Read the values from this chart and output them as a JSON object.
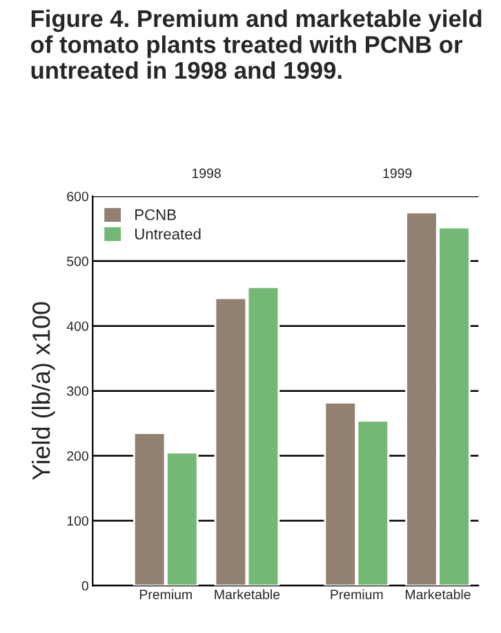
{
  "chart_data": {
    "type": "bar",
    "title": "Figure 4. Premium and marketable yield of tomato plants treated with PCNB or untreated in 1998 and 1999.",
    "ylabel": "Yield (lb/a) x100",
    "categories": [
      "Premium",
      "Marketable",
      "Premium",
      "Marketable"
    ],
    "annotations": [
      "1998",
      "1999"
    ],
    "series": [
      {
        "name": "PCNB",
        "color": "#928170",
        "values": [
          235,
          443,
          282,
          575
        ]
      },
      {
        "name": "Untreated",
        "color": "#73b874",
        "values": [
          205,
          460,
          254,
          552
        ]
      }
    ],
    "ylim": [
      0,
      600
    ],
    "yticks": [
      0,
      100,
      200,
      300,
      400,
      500,
      600
    ],
    "grid": "y",
    "legend": "top left"
  }
}
